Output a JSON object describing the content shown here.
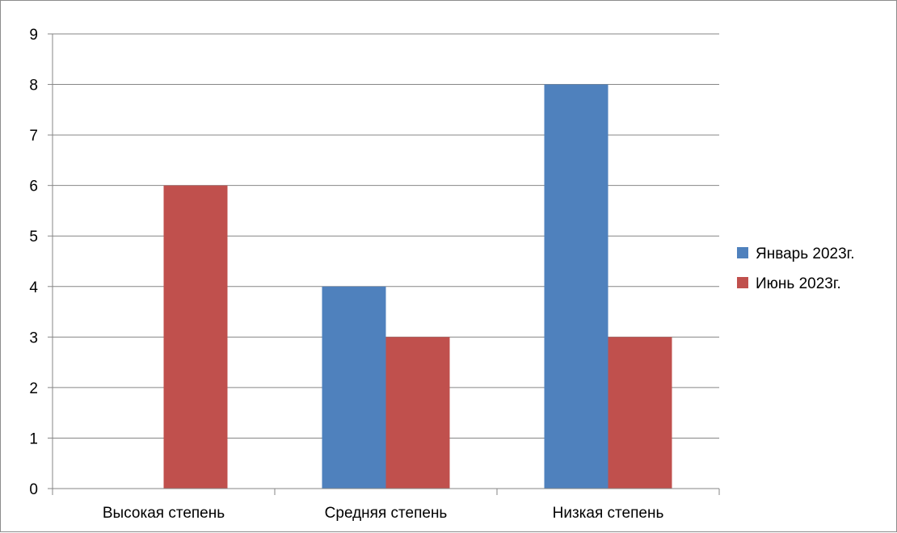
{
  "chart_data": {
    "type": "bar",
    "categories": [
      "Высокая степень",
      "Средняя степень",
      "Низкая степень"
    ],
    "series": [
      {
        "name": "Январь 2023г.",
        "color": "#4f81bd",
        "values": [
          0,
          4,
          8
        ]
      },
      {
        "name": "Июнь 2023г.",
        "color": "#c0504d",
        "values": [
          6,
          3,
          3
        ]
      }
    ],
    "ylim": [
      0,
      9
    ],
    "yticks": [
      0,
      1,
      2,
      3,
      4,
      5,
      6,
      7,
      8,
      9
    ],
    "grid": true,
    "legend_position": "right",
    "gridline_color": "#868686",
    "axis_color": "#868686"
  }
}
